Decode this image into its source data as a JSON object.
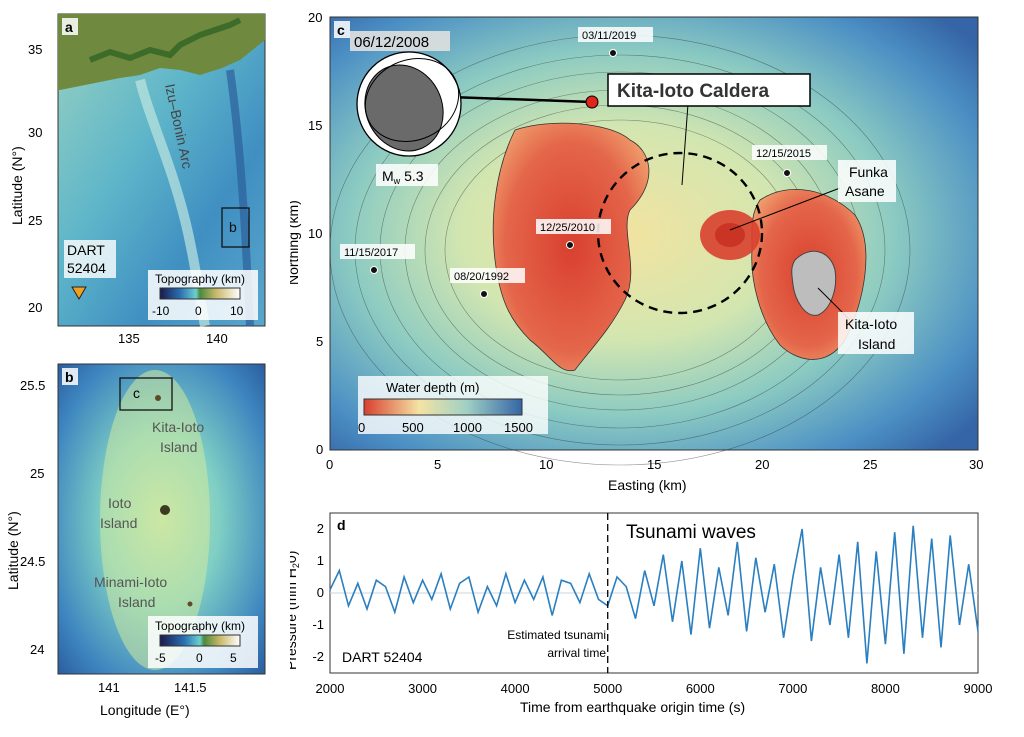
{
  "panels": {
    "a": {
      "label": "a",
      "ylabel": "Latitude (N°)",
      "yticks": [
        "35",
        "30",
        "25",
        "20"
      ],
      "xticks": [
        "135",
        "140"
      ],
      "arc_label": "Izu–Bonin Arc",
      "box_label": "b",
      "dart_label_1": "DART",
      "dart_label_2": "52404",
      "colorbar_title": "Topography (km)",
      "colorbar_ticks": [
        "-10",
        "0",
        "10"
      ]
    },
    "b": {
      "label": "b",
      "ylabel": "Latitude (N°)",
      "xlabel": "Longitude (E°)",
      "yticks": [
        "25.5",
        "25",
        "24.5",
        "24"
      ],
      "xticks": [
        "141",
        "141.5"
      ],
      "box_label": "c",
      "islands": [
        {
          "line1": "Kita-Ioto",
          "line2": "Island"
        },
        {
          "line1": "Ioto",
          "line2": "Island"
        },
        {
          "line1": "Minami-Ioto",
          "line2": "Island"
        }
      ],
      "colorbar_title": "Topography (km)",
      "colorbar_ticks": [
        "-5",
        "0",
        "5"
      ]
    },
    "c": {
      "label": "c",
      "xlabel": "Easting (km)",
      "ylabel": "Northing (km)",
      "xticks": [
        "0",
        "5",
        "10",
        "15",
        "20",
        "25",
        "30"
      ],
      "yticks": [
        "0",
        "5",
        "10",
        "15",
        "20"
      ],
      "caldera_label": "Kita-Ioto Caldera",
      "mechanism_date": "06/12/2008",
      "magnitude_prefix": "M",
      "magnitude_sub": "w",
      "magnitude_value": "5.3",
      "events": [
        {
          "date": "03/11/2019"
        },
        {
          "date": "12/15/2015"
        },
        {
          "date": "12/25/2010"
        },
        {
          "date": "11/15/2017"
        },
        {
          "date": "08/20/1992"
        }
      ],
      "funka_1": "Funka",
      "funka_2": "Asane",
      "island_1": "Kita-Ioto",
      "island_2": "Island",
      "colorbar_title": "Water depth (m)",
      "colorbar_ticks": [
        "0",
        "500",
        "1000",
        "1500"
      ]
    },
    "d": {
      "label": "d",
      "xlabel": "Time from earthquake origin time (s)",
      "ylabel_main": "Pressure (mm H",
      "ylabel_sub": "2",
      "ylabel_end": "0)",
      "tsunami_label": "Tsunami waves",
      "arrival_line1": "Estimated tsunami",
      "arrival_line2": "arrival time",
      "station": "DART 52404"
    }
  },
  "colors": {
    "deep_blue": "#2f5b9a",
    "mid_blue": "#5a9cc8",
    "shallow": "#f4e7a6",
    "red": "#d94a38",
    "trace": "#2a7fc0",
    "dart_marker": "#f0a020"
  },
  "chart_data": {
    "type": "line",
    "title": "",
    "xlabel": "Time from earthquake origin time (s)",
    "ylabel": "Pressure (mm H2O)",
    "xlim": [
      2000,
      9000
    ],
    "ylim": [
      -2.5,
      2.5
    ],
    "xticks": [
      2000,
      3000,
      4000,
      5000,
      6000,
      7000,
      8000,
      9000
    ],
    "yticks": [
      -2,
      -1,
      0,
      1,
      2
    ],
    "arrival_time": 5000,
    "series": [
      {
        "x": [
          2000,
          2100,
          2200,
          2300,
          2400,
          2500,
          2600,
          2700,
          2800,
          2900,
          3000,
          3100,
          3200,
          3300,
          3400,
          3500,
          3600,
          3700,
          3800,
          3900,
          4000,
          4100,
          4200,
          4300,
          4400,
          4500,
          4600,
          4700,
          4800,
          4900,
          5000,
          5100,
          5200,
          5300,
          5400,
          5500,
          5600,
          5700,
          5800,
          5900,
          6000,
          6100,
          6200,
          6300,
          6400,
          6500,
          6600,
          6700,
          6800,
          6900,
          7000,
          7100,
          7200,
          7300,
          7400,
          7500,
          7600,
          7700,
          7800,
          7900,
          8000,
          8100,
          8200,
          8300,
          8400,
          8500,
          8600,
          8700,
          8800,
          8900,
          9000
        ],
        "values": [
          0.1,
          0.7,
          -0.4,
          0.3,
          -0.5,
          0.4,
          0.2,
          -0.6,
          0.5,
          -0.3,
          0.4,
          -0.2,
          0.6,
          -0.5,
          0.3,
          0.5,
          -0.6,
          0.2,
          -0.4,
          0.6,
          -0.3,
          0.4,
          -0.2,
          0.5,
          -0.7,
          0.4,
          0.3,
          -0.3,
          0.6,
          -0.2,
          -0.4,
          0.5,
          0.2,
          -0.8,
          0.7,
          -0.4,
          1.2,
          -0.9,
          1.0,
          -1.3,
          1.4,
          -1.1,
          0.8,
          -0.7,
          1.6,
          -1.2,
          1.1,
          -0.6,
          0.9,
          -1.4,
          0.5,
          2.0,
          -1.5,
          0.8,
          -1.0,
          1.2,
          -1.4,
          1.6,
          -2.2,
          1.3,
          -1.6,
          1.9,
          -1.9,
          2.1,
          -1.4,
          1.7,
          -1.7,
          1.8,
          -1.0,
          0.9,
          -1.2
        ]
      }
    ]
  }
}
